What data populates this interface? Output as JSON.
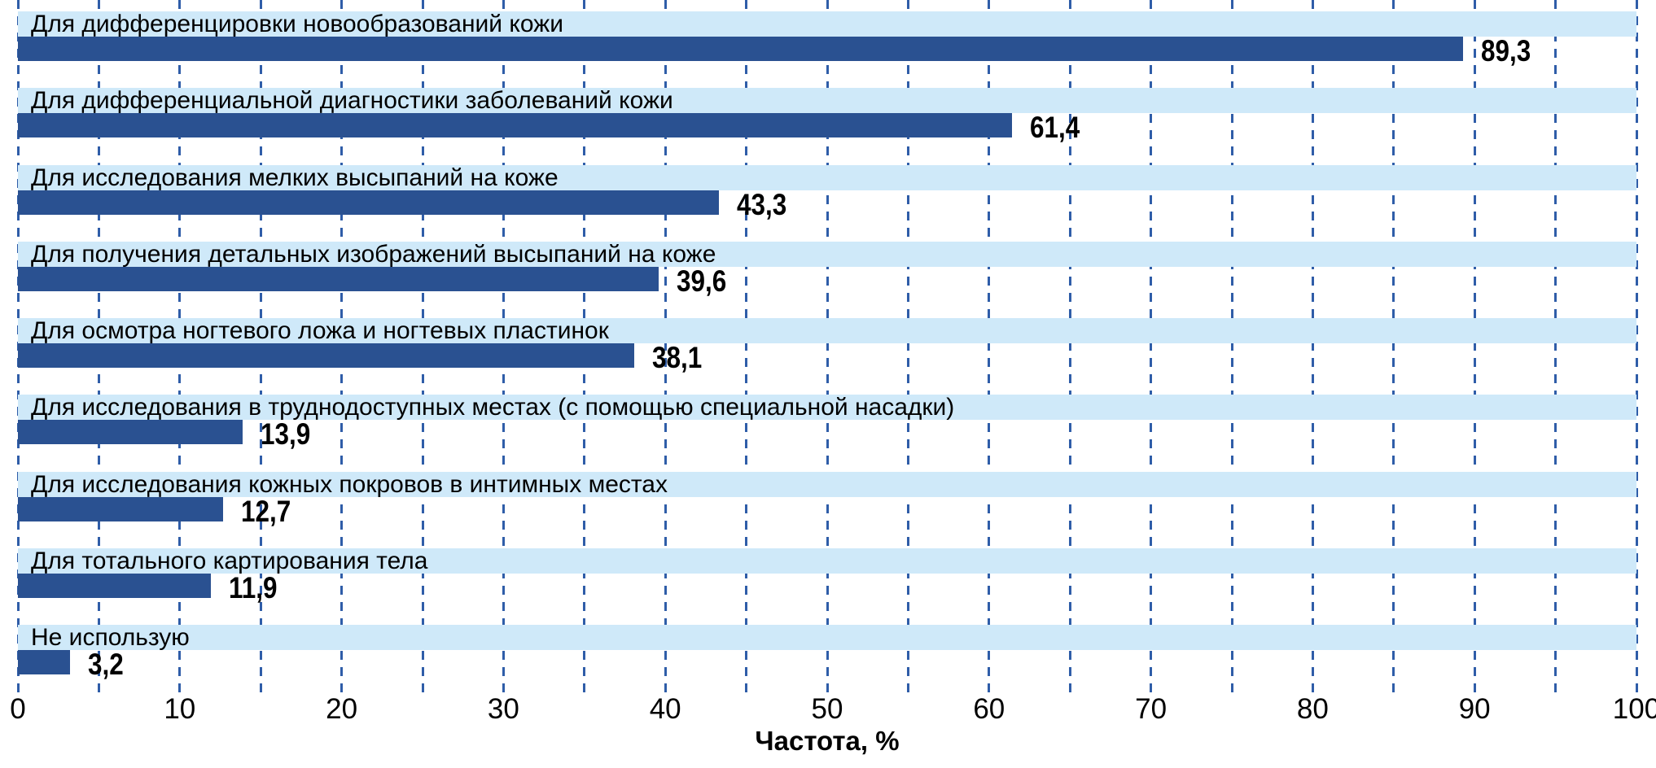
{
  "chart_data": {
    "type": "bar",
    "orientation": "horizontal",
    "categories": [
      "Для дифференцировки новообразований кожи",
      "Для дифференциальной диагностики заболеваний кожи",
      "Для исследования мелких высыпаний на коже",
      "Для получения детальных изображений высыпаний на коже",
      "Для осмотра ногтевого ложа и ногтевых пластинок",
      "Для исследования в труднодоступных местах (с помощью специальной насадки)",
      "Для исследования кожных покровов в интимных местах",
      "Для тотального картирования тела",
      "Не использую"
    ],
    "values": [
      89.3,
      61.4,
      43.3,
      39.6,
      38.1,
      13.9,
      12.7,
      11.9,
      3.2
    ],
    "value_labels": [
      "89,3",
      "61,4",
      "43,3",
      "39,6",
      "38,1",
      "13,9",
      "12,7",
      "11,9",
      "3,2"
    ],
    "xlabel": "Частота, %",
    "xlim": [
      0,
      100
    ],
    "xticks": [
      "0",
      "10",
      "20",
      "30",
      "40",
      "50",
      "60",
      "70",
      "80",
      "90",
      "100"
    ],
    "xtick_step": 10,
    "gridline_step": 5,
    "grid": "dashed-vertical",
    "legend_position": "none",
    "colors": {
      "bar": "#2A5191",
      "category_band": "#CFE9F9",
      "gridline": "#2F5DA8",
      "text": "#000000",
      "background": "#FFFFFF"
    }
  }
}
